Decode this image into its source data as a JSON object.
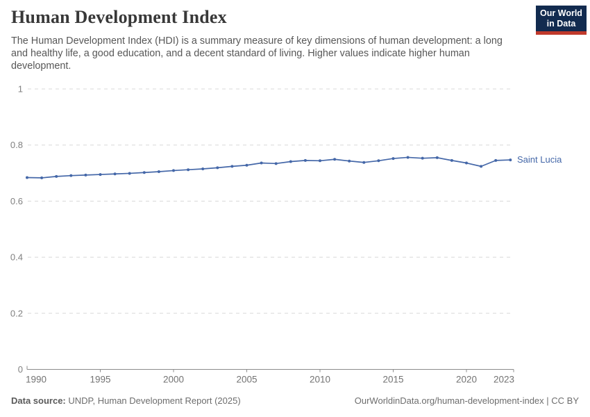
{
  "header": {
    "title": "Human Development Index",
    "subtitle": "The Human Development Index (HDI) is a summary measure of key dimensions of human development: a long and healthy life, a good education, and a decent standard of living. Higher values indicate higher human development.",
    "logo": {
      "line1": "Our World",
      "line2": "in Data"
    }
  },
  "chart_data": {
    "type": "line",
    "title": "Human Development Index",
    "xlabel": "",
    "ylabel": "",
    "xlim": [
      1990,
      2023
    ],
    "ylim": [
      0,
      1
    ],
    "grid": "horizontal-dashed",
    "legend_position": "end-of-line-label",
    "xticks": [
      1990,
      1995,
      2000,
      2005,
      2010,
      2015,
      2020,
      2023
    ],
    "yticks": [
      0,
      0.2,
      0.4,
      0.6,
      0.8,
      1
    ],
    "ytick_labels": [
      "0",
      "0.2",
      "0.4",
      "0.6",
      "0.8",
      "1"
    ],
    "x": [
      1990,
      1991,
      1992,
      1993,
      1994,
      1995,
      1996,
      1997,
      1998,
      1999,
      2000,
      2001,
      2002,
      2003,
      2004,
      2005,
      2006,
      2007,
      2008,
      2009,
      2010,
      2011,
      2012,
      2013,
      2014,
      2015,
      2016,
      2017,
      2018,
      2019,
      2020,
      2021,
      2022,
      2023
    ],
    "series": [
      {
        "name": "Saint Lucia",
        "color": "#4467A8",
        "values": [
          0.684,
          0.683,
          0.688,
          0.691,
          0.693,
          0.695,
          0.697,
          0.699,
          0.702,
          0.705,
          0.709,
          0.712,
          0.715,
          0.719,
          0.724,
          0.728,
          0.736,
          0.734,
          0.741,
          0.745,
          0.744,
          0.749,
          0.743,
          0.738,
          0.744,
          0.752,
          0.756,
          0.753,
          0.755,
          0.745,
          0.736,
          0.724,
          0.745,
          0.747
        ]
      }
    ]
  },
  "footer": {
    "source_label": "Data source:",
    "source_text": " UNDP, Human Development Report (2025)",
    "rights": "OurWorldinData.org/human-development-index | CC BY"
  },
  "colors": {
    "line": "#4467A8",
    "grid": "#D8D8D8",
    "axis": "#8C8C8C",
    "logo_navy": "#122B4F",
    "logo_red": "#C0392B"
  }
}
